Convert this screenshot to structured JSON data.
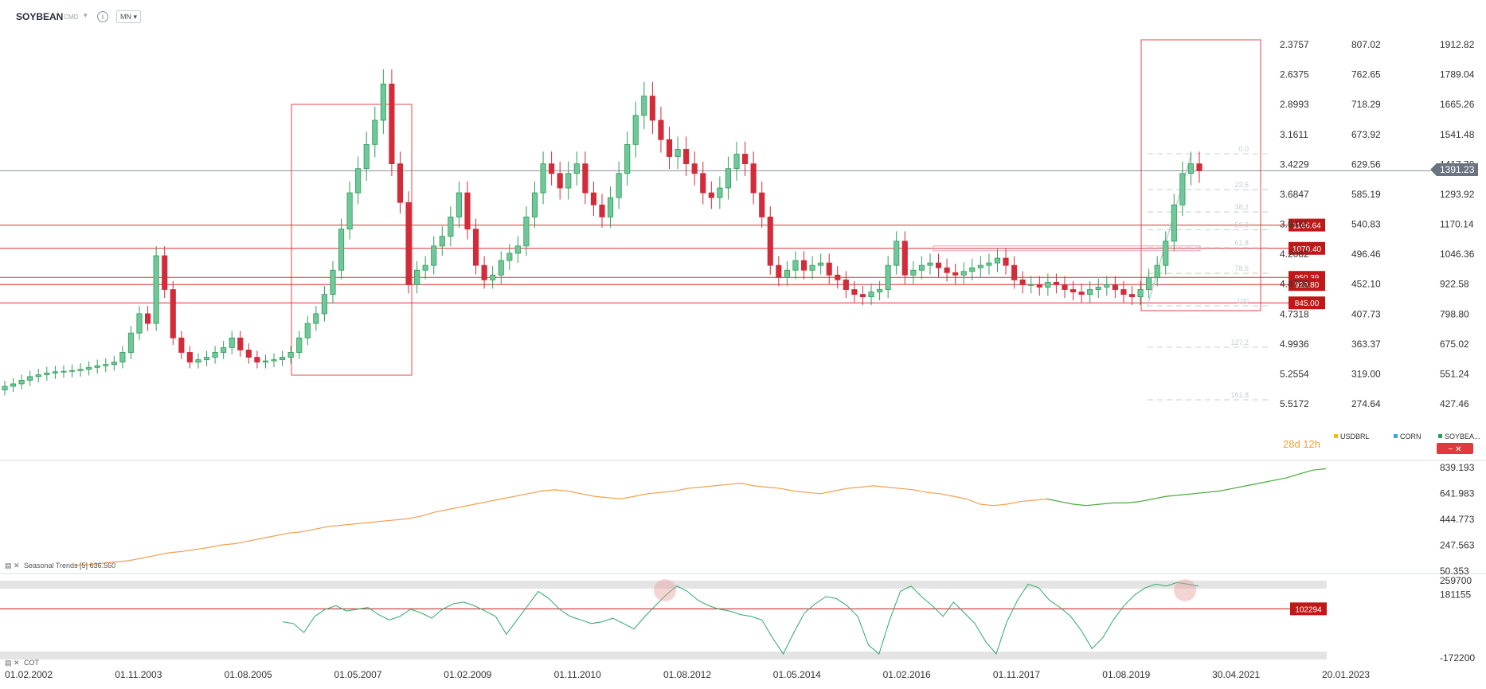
{
  "header": {
    "symbol": "SOYBEAN",
    "type": "CMD",
    "timeframe": "MN"
  },
  "countdown": "28d 12h",
  "legend": [
    {
      "name": "USDBRL",
      "color": "#f2c200"
    },
    {
      "name": "CORN",
      "color": "#36a9e1"
    },
    {
      "name": "SOYBEA...",
      "color": "#2e9e56"
    }
  ],
  "indicator_labels": {
    "seasonal": "Seasonal Trends [5] 636.560",
    "cot": "COT"
  },
  "current_price": "1391.23",
  "chart_data": [
    {
      "type": "candlestick",
      "title": "SOYBEAN",
      "x_ticks": [
        "01.02.2002",
        "01.11.2003",
        "01.08.2005",
        "01.05.2007",
        "01.02.2009",
        "01.11.2010",
        "01.08.2012",
        "01.05.2014",
        "01.02.2016",
        "01.11.2017",
        "01.08.2019",
        "30.04.2021",
        "20.01.2023"
      ],
      "y_axis_primary": [
        "1912.82",
        "1789.04",
        "1665.26",
        "1541.48",
        "1417.70",
        "1293.92",
        "1170.14",
        "1046.36",
        "922.58",
        "798.80",
        "675.02",
        "551.24",
        "427.46"
      ],
      "y_axis_secondary": [
        "807.02",
        "762.65",
        "718.29",
        "673.92",
        "629.56",
        "585.19",
        "540.83",
        "496.46",
        "452.10",
        "407.73",
        "363.37",
        "319.00",
        "274.64"
      ],
      "y_axis_tertiary": [
        "2.3757",
        "2.6375",
        "2.8993",
        "3.1611",
        "3.4229",
        "3.6847",
        "3.9465",
        "4.2082",
        "4.4700",
        "4.7318",
        "4.9936",
        "5.2554",
        "5.5172"
      ],
      "ylim": [
        400,
        1940
      ],
      "horizontal_levels": [
        "1166.64",
        "1070.40",
        "950.39",
        "920.80",
        "845.00"
      ],
      "fibonacci_labels": [
        "0.0",
        "23.6",
        "38.2",
        "50.0",
        "61.8",
        "78.6",
        "100",
        "127.2",
        "161.8"
      ],
      "closes": [
        500,
        510,
        525,
        540,
        548,
        555,
        560,
        562,
        565,
        570,
        578,
        585,
        590,
        600,
        640,
        720,
        800,
        760,
        1040,
        900,
        700,
        640,
        600,
        610,
        620,
        640,
        660,
        700,
        650,
        620,
        600,
        605,
        610,
        620,
        640,
        700,
        760,
        800,
        880,
        980,
        1150,
        1300,
        1400,
        1500,
        1600,
        1750,
        1420,
        1260,
        920,
        980,
        1000,
        1080,
        1120,
        1200,
        1300,
        1150,
        1000,
        940,
        960,
        1020,
        1050,
        1080,
        1200,
        1300,
        1420,
        1380,
        1320,
        1380,
        1420,
        1300,
        1250,
        1200,
        1280,
        1380,
        1500,
        1620,
        1700,
        1600,
        1520,
        1450,
        1480,
        1420,
        1380,
        1300,
        1280,
        1320,
        1400,
        1460,
        1420,
        1300,
        1200,
        1000,
        950,
        980,
        1020,
        980,
        1000,
        1010,
        960,
        940,
        900,
        880,
        870,
        890,
        900,
        1000,
        1100,
        960,
        980,
        1000,
        1010,
        990,
        970,
        960,
        975,
        990,
        1000,
        1010,
        1030,
        1000,
        940,
        920,
        920,
        910,
        930,
        920,
        900,
        890,
        880,
        900,
        910,
        920,
        900,
        880,
        870,
        900,
        950,
        1000,
        1100,
        1250,
        1380,
        1420,
        1391
      ]
    },
    {
      "type": "line",
      "title": "Seasonal Trends",
      "y_ticks": [
        "839.193",
        "641.983",
        "444.773",
        "247.563",
        "50.353"
      ],
      "ylim": [
        50.353,
        839.193
      ],
      "values": [
        95,
        100,
        110,
        120,
        130,
        150,
        170,
        190,
        200,
        215,
        230,
        250,
        260,
        280,
        300,
        320,
        340,
        350,
        370,
        390,
        400,
        410,
        420,
        430,
        440,
        450,
        470,
        500,
        520,
        540,
        560,
        580,
        600,
        620,
        640,
        660,
        670,
        660,
        640,
        620,
        610,
        600,
        620,
        640,
        650,
        660,
        680,
        690,
        700,
        710,
        720,
        700,
        690,
        680,
        660,
        650,
        640,
        660,
        680,
        690,
        700,
        690,
        680,
        670,
        650,
        640,
        620,
        600,
        560,
        550,
        560,
        580,
        590,
        600,
        580,
        560,
        550,
        560,
        570,
        570,
        580,
        600,
        620,
        630,
        640,
        650,
        660,
        680,
        700,
        720,
        740,
        760,
        790,
        820,
        830
      ]
    },
    {
      "type": "line",
      "title": "COT",
      "y_ticks": [
        "259700",
        "181155",
        "-172200"
      ],
      "ylim": [
        -172200,
        259700
      ],
      "reference_level": "102294",
      "values": [
        30000,
        20000,
        -30000,
        60000,
        100000,
        120000,
        90000,
        100000,
        110000,
        70000,
        40000,
        60000,
        100000,
        80000,
        50000,
        100000,
        130000,
        140000,
        120000,
        90000,
        60000,
        -40000,
        40000,
        120000,
        200000,
        160000,
        100000,
        60000,
        40000,
        20000,
        30000,
        50000,
        20000,
        -10000,
        60000,
        120000,
        180000,
        230000,
        200000,
        150000,
        120000,
        100000,
        90000,
        70000,
        60000,
        40000,
        -60000,
        -150000,
        -30000,
        80000,
        130000,
        170000,
        160000,
        120000,
        60000,
        -100000,
        -150000,
        40000,
        200000,
        230000,
        170000,
        120000,
        60000,
        140000,
        80000,
        20000,
        -80000,
        -150000,
        30000,
        150000,
        240000,
        220000,
        150000,
        110000,
        60000,
        -20000,
        -120000,
        -60000,
        40000,
        120000,
        180000,
        220000,
        240000,
        230000,
        250000,
        240000,
        230000
      ]
    }
  ]
}
